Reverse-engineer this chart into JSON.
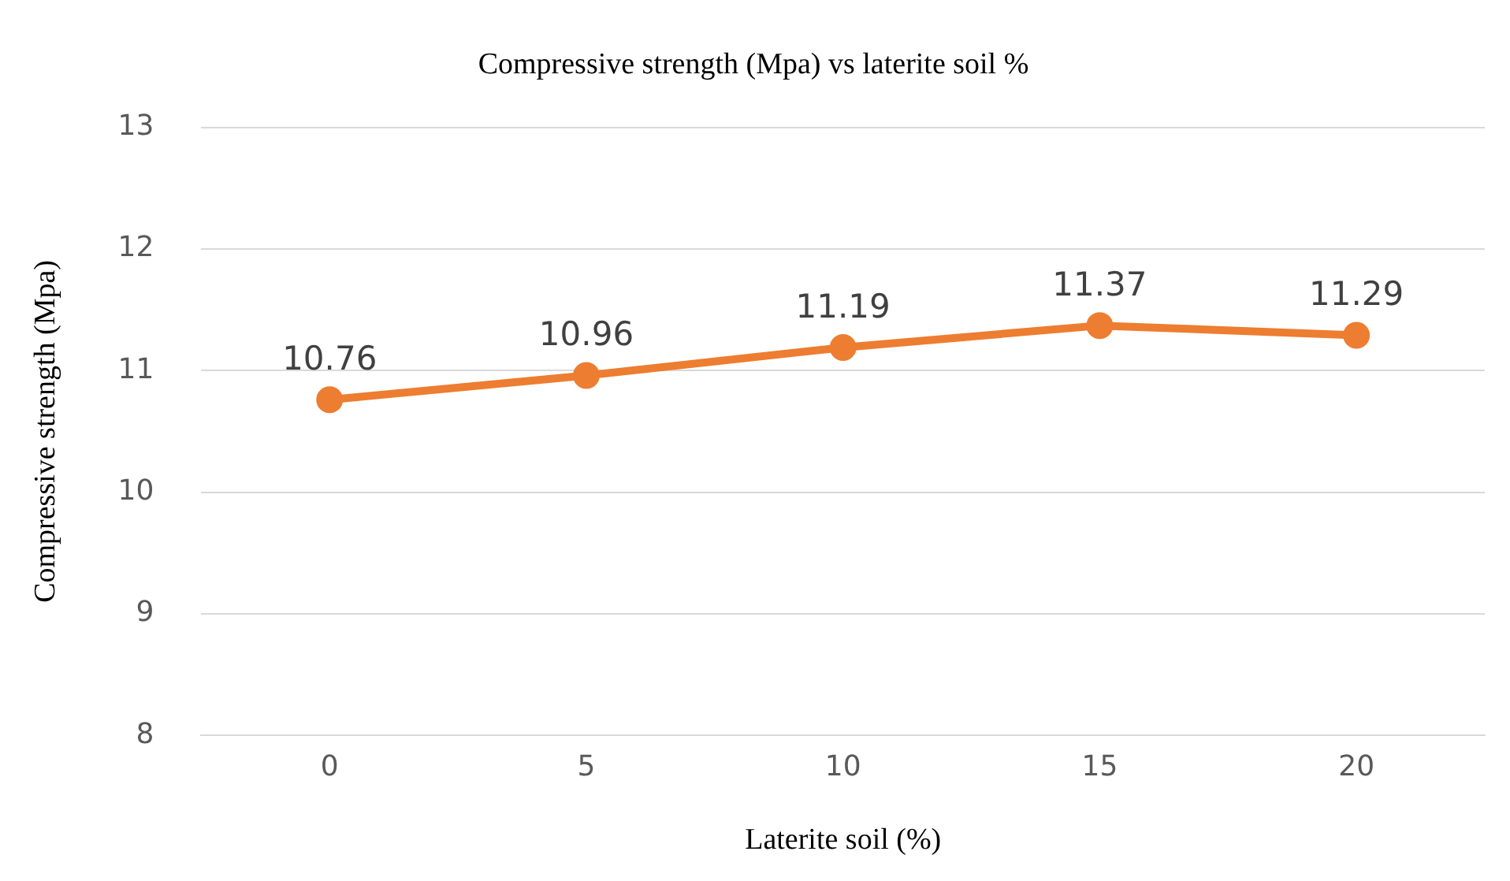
{
  "chart_data": {
    "type": "line",
    "title": "Compressive strength (Mpa) vs laterite soil %",
    "xlabel": "Laterite soil (%)",
    "ylabel": "Compressive strength (Mpa)",
    "categories": [
      "0",
      "5",
      "10",
      "15",
      "20"
    ],
    "series": [
      {
        "color": "#ed7d31",
        "values": [
          10.76,
          10.96,
          11.19,
          11.37,
          11.29
        ]
      }
    ],
    "ylim": [
      8,
      13
    ],
    "yticks": [
      8,
      9,
      10,
      11,
      12,
      13
    ],
    "grid": "y",
    "legend": false,
    "marker": "circle",
    "line_style": "solid",
    "data_labels": true
  }
}
